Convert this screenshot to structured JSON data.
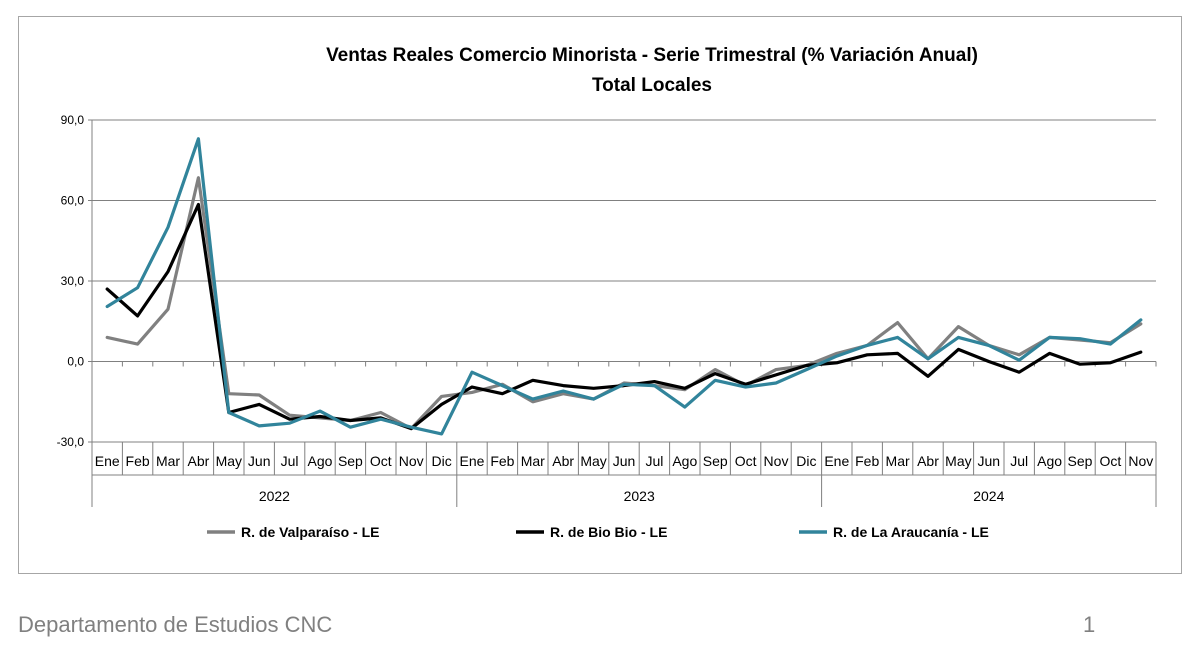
{
  "chart_data": {
    "type": "line",
    "title": "Ventas Reales Comercio Minorista - Serie Trimestral (% Variación Anual)",
    "subtitle": "Total Locales",
    "categories": [
      "Ene",
      "Feb",
      "Mar",
      "Abr",
      "May",
      "Jun",
      "Jul",
      "Ago",
      "Sep",
      "Oct",
      "Nov",
      "Dic",
      "Ene",
      "Feb",
      "Mar",
      "Abr",
      "May",
      "Jun",
      "Jul",
      "Ago",
      "Sep",
      "Oct",
      "Nov",
      "Dic",
      "Ene",
      "Feb",
      "Mar",
      "Abr",
      "May",
      "Jun",
      "Jul",
      "Ago",
      "Sep",
      "Oct",
      "Nov"
    ],
    "years": [
      {
        "label": "2022",
        "start": 0,
        "count": 12
      },
      {
        "label": "2023",
        "start": 12,
        "count": 12
      },
      {
        "label": "2024",
        "start": 24,
        "count": 11
      }
    ],
    "ylim": [
      -30,
      90
    ],
    "yticks": [
      -30,
      0,
      30,
      60,
      90
    ],
    "ytick_labels": [
      "-30,0",
      "0,0",
      "30,0",
      "60,0",
      "90,0"
    ],
    "grid": true,
    "legend_position": "bottom",
    "series": [
      {
        "name": "R. de Valparaíso - LE",
        "color": "#808080",
        "values": [
          9,
          6.5,
          19.5,
          68.5,
          -12,
          -12.5,
          -20,
          -21,
          -22,
          -19,
          -25,
          -13,
          -11.5,
          -8.5,
          -15,
          -12,
          -14,
          -8,
          -9,
          -10.5,
          -3,
          -9,
          -3,
          -1.5,
          3,
          6,
          14.5,
          1,
          13,
          6,
          2.5,
          9,
          8,
          7,
          14
        ]
      },
      {
        "name": "R. de Bio Bio - LE",
        "color": "#000000",
        "values": [
          27,
          17,
          33.5,
          58.5,
          -19,
          -16,
          -21.5,
          -20.5,
          -22,
          -21,
          -25,
          -16,
          -9.5,
          -12,
          -7,
          -9,
          -10,
          -9,
          -7.5,
          -10,
          -4.5,
          -8.5,
          -5,
          -1.5,
          -0.5,
          2.5,
          3,
          -5.5,
          4.5,
          0,
          -4,
          3,
          -1,
          -0.5,
          3.5
        ]
      },
      {
        "name": "R. de La Araucanía - LE",
        "color": "#31849b",
        "values": [
          20.5,
          27.5,
          50,
          83,
          -19,
          -24,
          -23,
          -18.5,
          -24.5,
          -21.5,
          -24.5,
          -27,
          -4,
          -9,
          -14,
          -11,
          -14,
          -8.5,
          -9,
          -17,
          -7,
          -9.5,
          -8,
          -3,
          2,
          6,
          9,
          1,
          9,
          6,
          0.5,
          9,
          8.5,
          6.5,
          15.5
        ]
      }
    ]
  },
  "footer": {
    "department": "Departamento de Estudios CNC",
    "page_number": "1"
  }
}
